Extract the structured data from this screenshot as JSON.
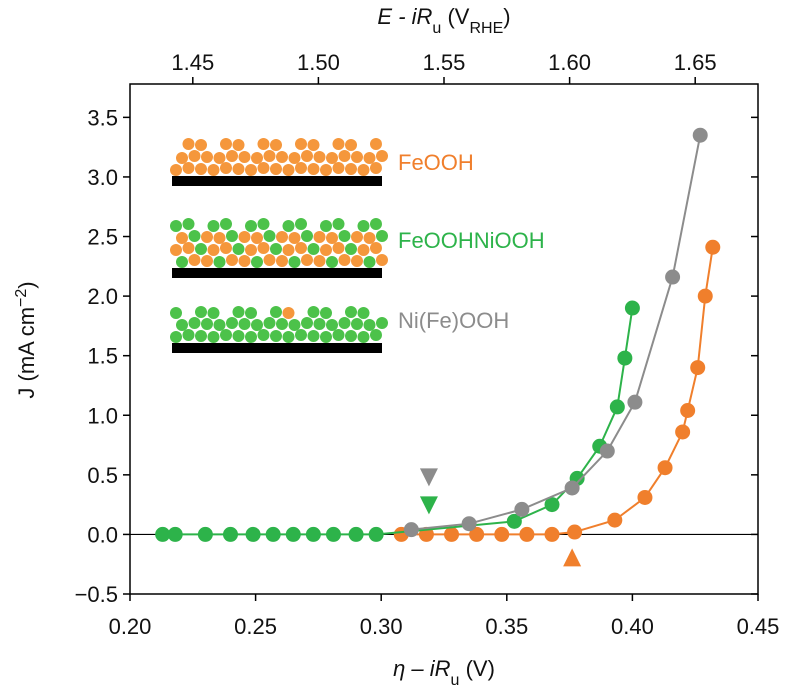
{
  "chart_data": {
    "type": "line",
    "x_label": [
      "η – iR",
      "u",
      " (V)"
    ],
    "x2_label": [
      "E - iR",
      "u",
      " (V",
      "RHE",
      ")"
    ],
    "y_label": [
      "J (mA cm",
      "−2",
      ")"
    ],
    "xlim": [
      0.2,
      0.45
    ],
    "xticks": [
      {
        "value": 0.2,
        "label": "0.20"
      },
      0.25,
      {
        "value": 0.3,
        "label": "0.30"
      },
      0.35,
      {
        "value": 0.4,
        "label": "0.40"
      },
      0.45
    ],
    "x2lim": [
      1.425,
      1.675
    ],
    "x2ticks": [
      1.45,
      {
        "value": 1.5,
        "label": "1.50"
      },
      1.55,
      {
        "value": 1.6,
        "label": "1.60"
      },
      1.65
    ],
    "ylim": [
      -0.5,
      3.78
    ],
    "yticks": [
      {
        "value": -0.5,
        "label": "−0.5"
      },
      {
        "value": 0,
        "label": "0.0"
      },
      0.5,
      {
        "value": 1,
        "label": "1.0"
      },
      1.5,
      {
        "value": 2,
        "label": "2.0"
      },
      2.5,
      {
        "value": 3,
        "label": "3.0"
      },
      3.5
    ],
    "series": [
      {
        "name": "FeOOH",
        "color": "#f07f2c",
        "onset": 0.376,
        "x": [
          0.308,
          0.318,
          0.328,
          0.338,
          0.348,
          0.358,
          0.368,
          0.377,
          0.393,
          0.405,
          0.413,
          0.42,
          0.422,
          0.426,
          0.429,
          0.432
        ],
        "values": [
          0,
          0,
          0,
          0,
          0,
          0,
          0,
          0.02,
          0.12,
          0.31,
          0.56,
          0.86,
          1.04,
          1.4,
          2.0,
          2.41
        ]
      },
      {
        "name": "FeOOHNiOOH",
        "color": "#2db34a",
        "onset": 0.319,
        "x": [
          0.213,
          0.218,
          0.23,
          0.24,
          0.249,
          0.257,
          0.265,
          0.273,
          0.281,
          0.29,
          0.298,
          0.353,
          0.368,
          0.378,
          0.387,
          0.394,
          0.397,
          0.4
        ],
        "values": [
          0,
          0,
          0,
          0,
          0,
          0,
          0,
          0,
          0,
          0,
          0,
          0.11,
          0.25,
          0.47,
          0.74,
          1.07,
          1.48,
          1.9
        ]
      },
      {
        "name": "Ni(Fe)OOH",
        "color": "#8c8c8c",
        "onset": 0.319,
        "x": [
          0.312,
          0.335,
          0.356,
          0.376,
          0.39,
          0.401,
          0.416,
          0.427
        ],
        "values": [
          0.04,
          0.09,
          0.21,
          0.39,
          0.7,
          1.11,
          2.16,
          3.35
        ]
      }
    ]
  }
}
